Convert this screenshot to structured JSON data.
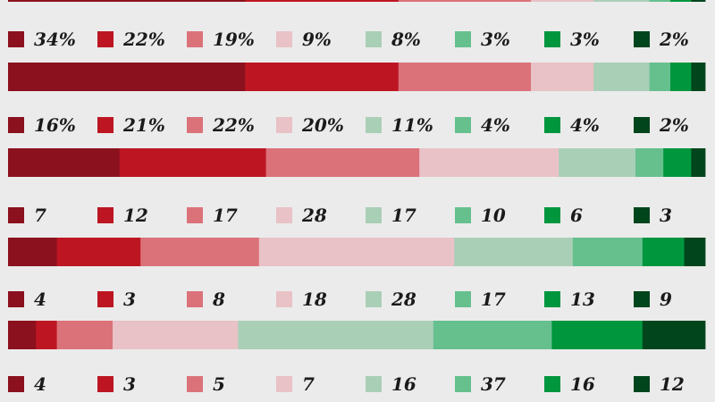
{
  "chart_data": {
    "type": "bar",
    "stacked": "horizontal-100",
    "colors": [
      "#8b111e",
      "#bd1622",
      "#db727a",
      "#e8c2c6",
      "#aacfb7",
      "#66c08e",
      "#00963e",
      "#00451c"
    ],
    "top_partial_bar": [
      34,
      22,
      19,
      9,
      8,
      3,
      3,
      2
    ],
    "rows": [
      {
        "labels": [
          "34%",
          "22%",
          "19%",
          "9%",
          "8%",
          "3%",
          "3%",
          "2%"
        ],
        "values": [
          34,
          22,
          19,
          9,
          8,
          3,
          3,
          2
        ]
      },
      {
        "labels": [
          "16%",
          "21%",
          "22%",
          "20%",
          "11%",
          "4%",
          "4%",
          "2%"
        ],
        "values": [
          16,
          21,
          22,
          20,
          11,
          4,
          4,
          2
        ]
      },
      {
        "labels": [
          "7",
          "12",
          "17",
          "28",
          "17",
          "10",
          "6",
          "3"
        ],
        "values": [
          7,
          12,
          17,
          28,
          17,
          10,
          6,
          3
        ]
      },
      {
        "labels": [
          "4",
          "3",
          "8",
          "18",
          "28",
          "17",
          "13",
          "9"
        ],
        "values": [
          4,
          3,
          8,
          18,
          28,
          17,
          13,
          9
        ]
      },
      {
        "labels": [
          "4",
          "3",
          "5",
          "7",
          "16",
          "37",
          "16",
          "12"
        ],
        "values": [
          4,
          3,
          5,
          7,
          16,
          37,
          16,
          12
        ]
      }
    ]
  }
}
